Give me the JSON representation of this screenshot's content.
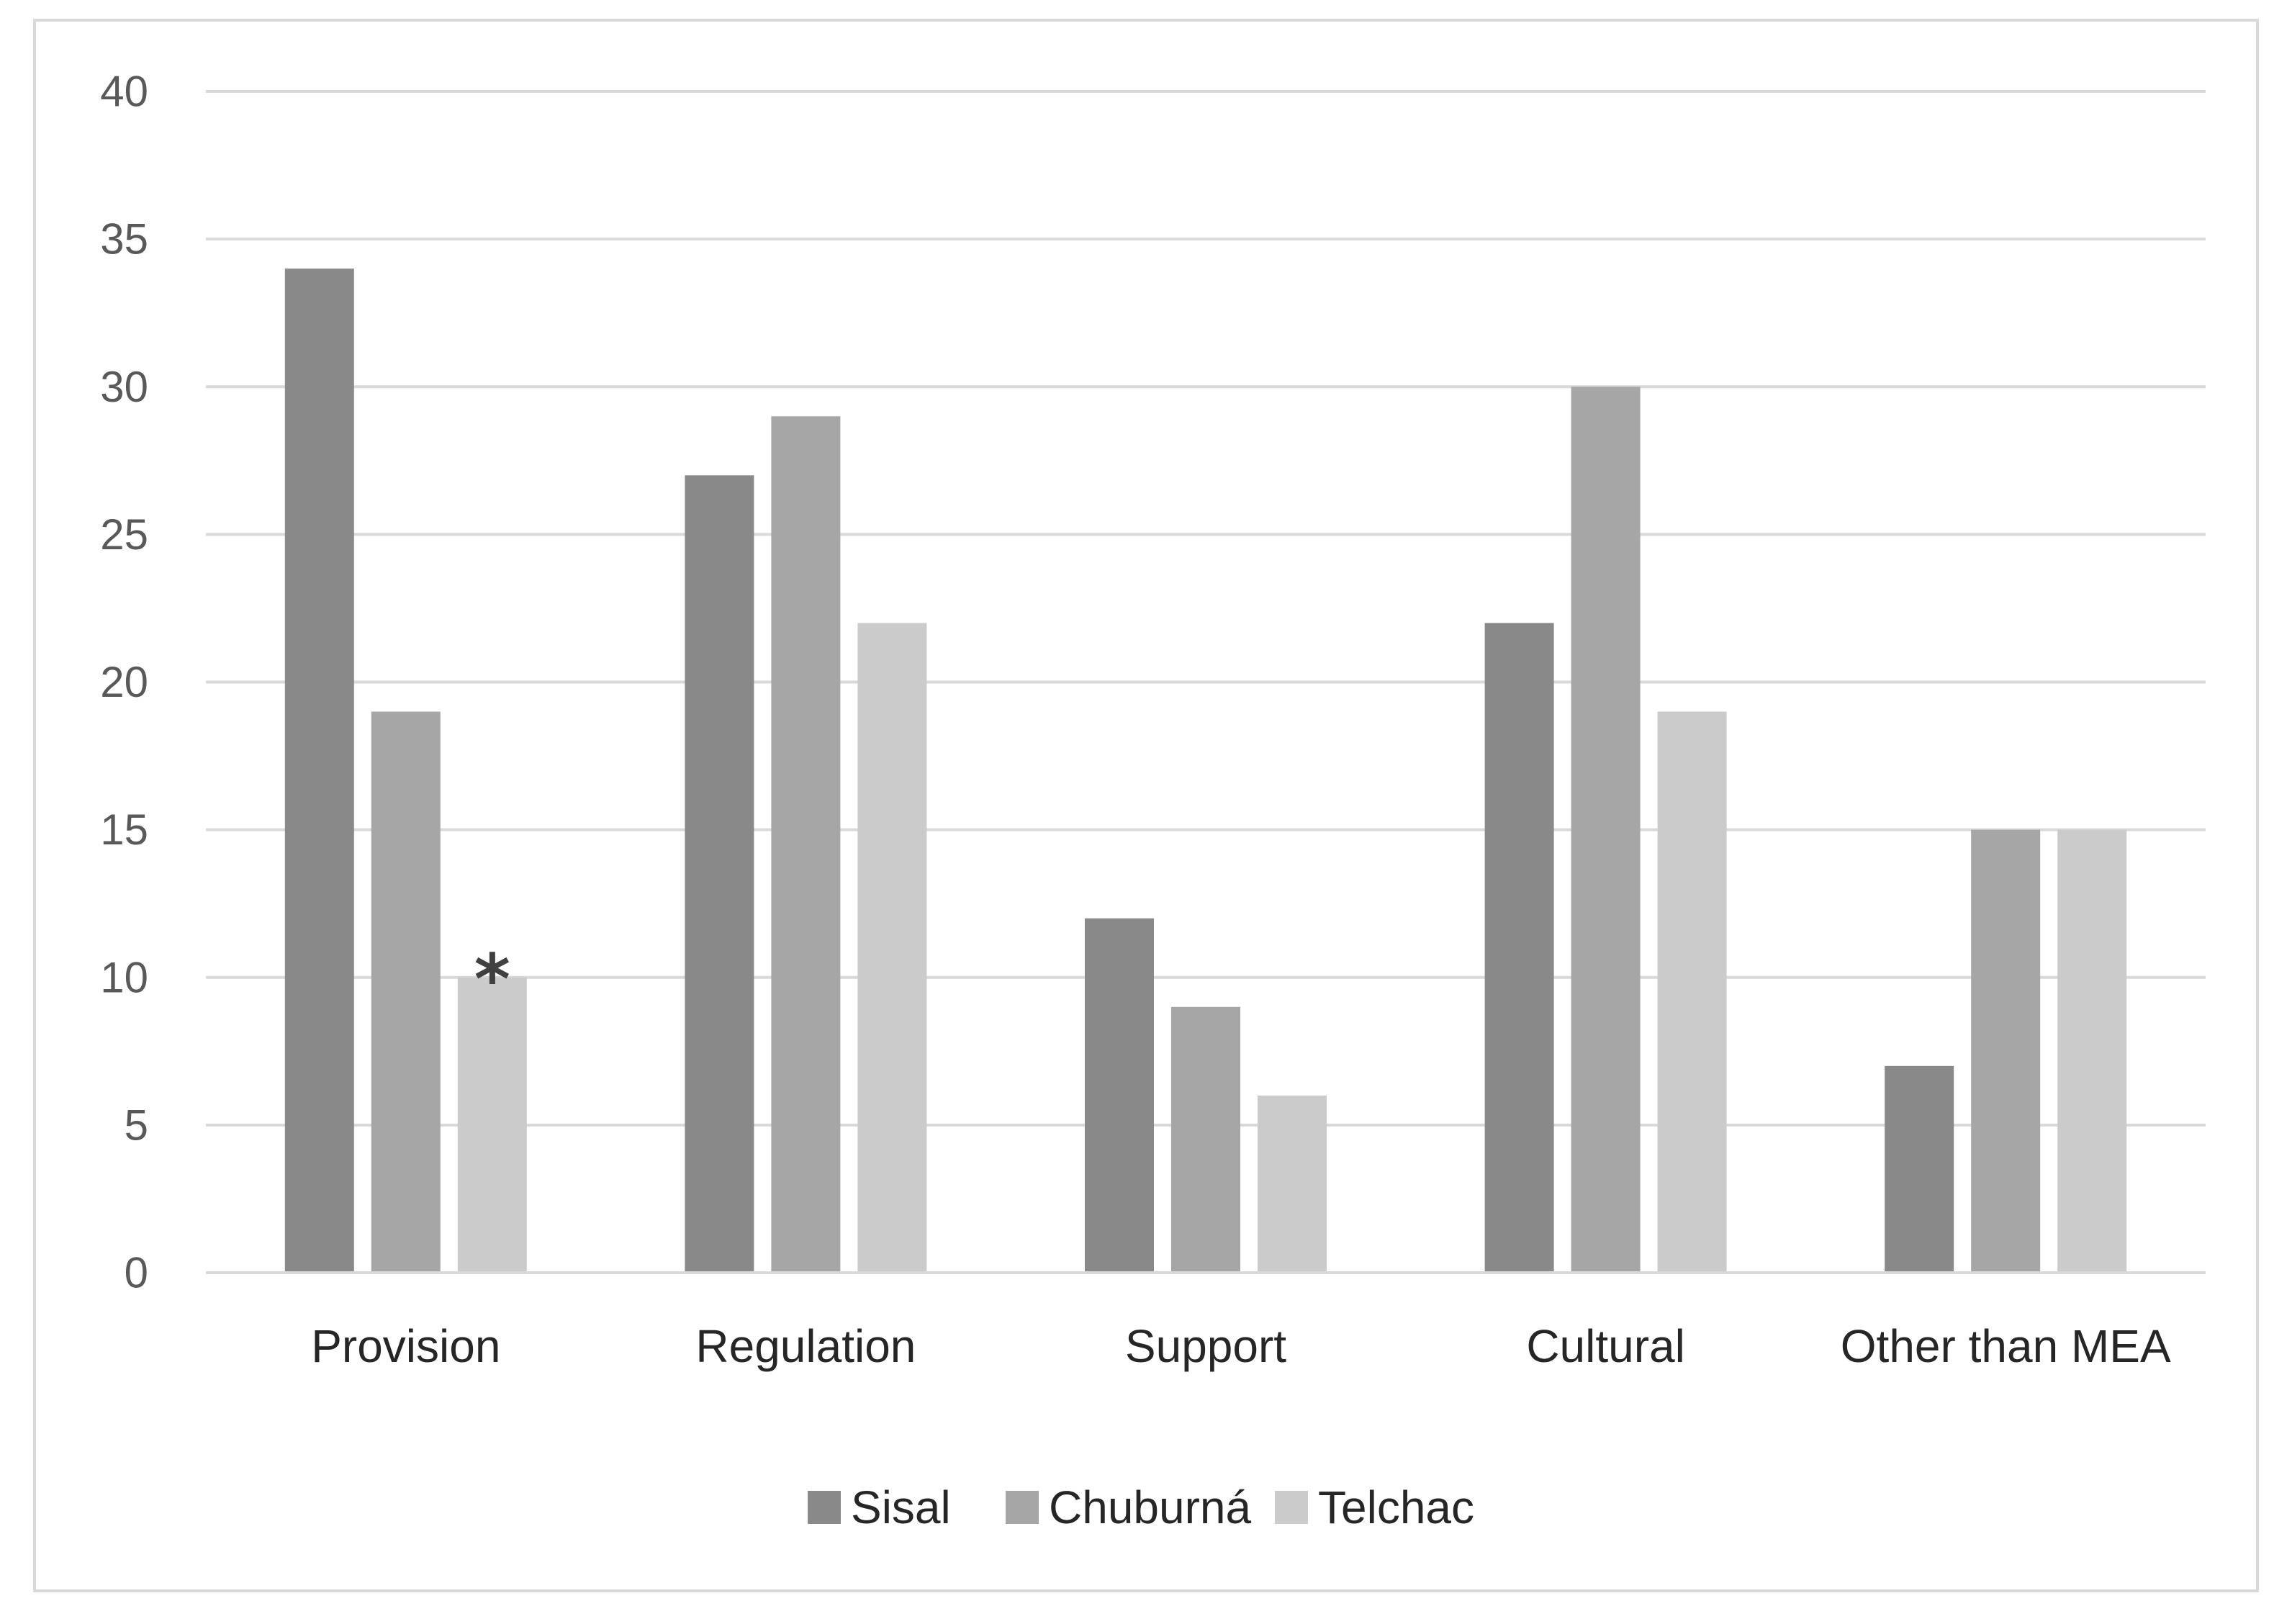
{
  "chart_data": {
    "type": "bar",
    "title": "",
    "xlabel": "",
    "ylabel": "",
    "categories": [
      "Provision",
      "Regulation",
      "Support",
      "Cultural",
      "Other than MEA"
    ],
    "series": [
      {
        "name": "Sisal",
        "color": "#898989",
        "values": [
          34,
          27,
          12,
          22,
          7
        ]
      },
      {
        "name": "Chuburná",
        "color": "#a6a6a6",
        "values": [
          19,
          29,
          9,
          30,
          15
        ]
      },
      {
        "name": "Telchac",
        "color": "#cbcbcb",
        "values": [
          10,
          22,
          6,
          19,
          15
        ]
      }
    ],
    "ylim": [
      0,
      40
    ],
    "yticks": [
      0,
      5,
      10,
      15,
      20,
      25,
      30,
      35,
      40
    ],
    "grid": true,
    "gridline_color": "#d9d9d9",
    "legend_position": "bottom",
    "annotations": [
      {
        "text": "*",
        "category": "Provision",
        "series": "Telchac"
      }
    ]
  }
}
